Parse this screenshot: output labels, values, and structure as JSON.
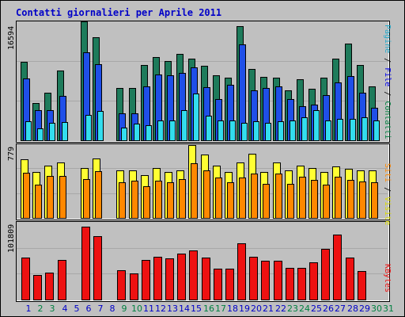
{
  "title": "Contatti giornalieri per Aprile 2011",
  "colors": {
    "pages": "#1e7b5b",
    "files": "#1f4fe8",
    "contacts": "#33ddee",
    "visits": "#ffff33",
    "sites": "#ff8800",
    "kbytes": "#ee1111",
    "weekend_label": "#008040",
    "weekday_label": "#0000c8"
  },
  "right_labels": {
    "top": [
      {
        "text": "Pagine",
        "color": "#22aacc"
      },
      {
        "text": " / ",
        "color": "#000000"
      },
      {
        "text": "File",
        "color": "#0000ee"
      },
      {
        "text": " / ",
        "color": "#000000"
      },
      {
        "text": "Contatti",
        "color": "#008040"
      }
    ],
    "mid": [
      {
        "text": "Siti",
        "color": "#ff8800"
      },
      {
        "text": " / ",
        "color": "#000000"
      },
      {
        "text": "Visite",
        "color": "#dddd00"
      }
    ],
    "bottom": [
      {
        "text": "KBytes",
        "color": "#ee1111"
      }
    ]
  },
  "chart_data": {
    "type": "bar",
    "title": "Contatti giornalieri per Aprile 2011",
    "categories": [
      "1",
      "2",
      "3",
      "4",
      "5",
      "6",
      "7",
      "8",
      "9",
      "10",
      "11",
      "12",
      "13",
      "14",
      "15",
      "16",
      "17",
      "18",
      "19",
      "20",
      "21",
      "22",
      "23",
      "24",
      "25",
      "26",
      "27",
      "28",
      "29",
      "30",
      "31"
    ],
    "weekend_days": [
      "2",
      "3",
      "9",
      "10",
      "16",
      "17",
      "23",
      "24",
      "30",
      "31"
    ],
    "panels": [
      {
        "name": "contatti",
        "ymax_label": "16594",
        "ylim": [
          0,
          16594
        ],
        "series": [
          {
            "name": "Contatti",
            "values": [
              11000,
              5200,
              6600,
              9700,
              null,
              16594,
              14400,
              null,
              7300,
              7300,
              10500,
              11600,
              11100,
              12100,
              11400,
              10400,
              9100,
              8700,
              15900,
              10000,
              8800,
              8700,
              7000,
              8500,
              7200,
              8700,
              11400,
              13500,
              10500,
              7500,
              null
            ]
          },
          {
            "name": "File",
            "values": [
              8600,
              4200,
              4200,
              6200,
              null,
              12300,
              10600,
              null,
              3800,
              3800,
              7500,
              9200,
              9100,
              9400,
              10200,
              7400,
              5800,
              7700,
              13400,
              7000,
              7300,
              7500,
              5800,
              4800,
              5000,
              6300,
              8100,
              9000,
              6600,
              4500,
              null
            ]
          },
          {
            "name": "Pagine",
            "values": [
              2600,
              1700,
              2400,
              2500,
              null,
              3500,
              4100,
              null,
              1800,
              2300,
              2100,
              2800,
              2800,
              4200,
              6500,
              3400,
              2800,
              2800,
              2400,
              2700,
              2400,
              2600,
              2800,
              3200,
              4200,
              2800,
              3000,
              3000,
              3200,
              2800,
              null
            ]
          }
        ]
      },
      {
        "name": "visite",
        "ymax_label": "779",
        "ylim": [
          0,
          779
        ],
        "series": [
          {
            "name": "Visite",
            "values": [
              610,
              480,
              550,
              580,
              null,
              520,
              620,
              null,
              500,
              500,
              450,
              520,
              480,
              500,
              760,
              660,
              550,
              480,
              580,
              670,
              480,
              580,
              500,
              550,
              520,
              480,
              540,
              510,
              500,
              500,
              null
            ]
          },
          {
            "name": "Siti",
            "values": [
              470,
              350,
              440,
              440,
              null,
              410,
              490,
              null,
              370,
              390,
              330,
              390,
              370,
              410,
              570,
              500,
              420,
              370,
              420,
              460,
              360,
              460,
              360,
              430,
              400,
              350,
              430,
              400,
              380,
              370,
              null
            ]
          }
        ]
      },
      {
        "name": "kbytes",
        "ymax_label": "101809",
        "ylim": [
          0,
          101809
        ],
        "series": [
          {
            "name": "KBytes",
            "values": [
              55000,
              32000,
              35000,
              52000,
              null,
              95800,
              83000,
              null,
              38000,
              34000,
              52000,
              56000,
              54000,
              60000,
              64000,
              55000,
              40000,
              40000,
              74000,
              56000,
              51000,
              51000,
              42000,
              42000,
              49000,
              66000,
              85000,
              55000,
              37000,
              null,
              null
            ]
          }
        ]
      }
    ]
  }
}
